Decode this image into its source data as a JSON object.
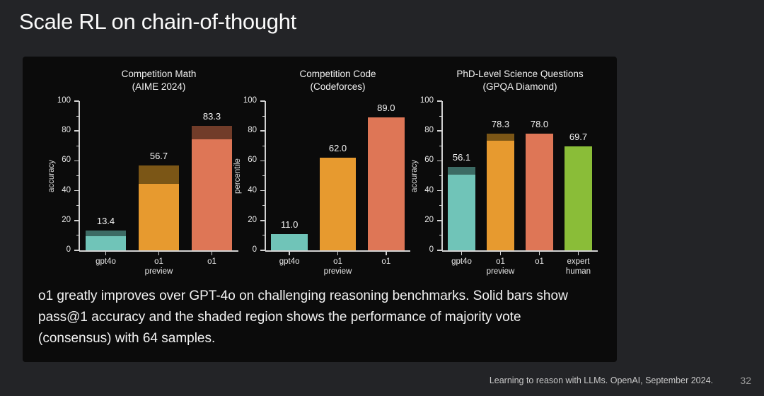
{
  "slide": {
    "title": "Scale RL on chain-of-thought",
    "caption": "o1 greatly improves over GPT-4o on challenging reasoning benchmarks. Solid bars show pass@1 accuracy and the shaded region shows the performance of majority vote (consensus) with 64 samples.",
    "footer": "Learning to reason with LLMs. OpenAI, September 2024.",
    "page_number": "32"
  },
  "colors": {
    "background": "#232427",
    "panel": "#0b0b0b",
    "axis": "#d2d2d2",
    "teal": "#70c4b8",
    "orange": "#e79a2f",
    "coral": "#de7656",
    "green": "#8abd38"
  },
  "chart_data": [
    {
      "type": "bar",
      "title": "Competition Math\n(AIME 2024)",
      "ylabel": "accuracy",
      "xlabel": "",
      "ylim": [
        0,
        100
      ],
      "yticks": [
        0,
        20,
        40,
        60,
        80,
        100
      ],
      "grid": false,
      "legend": "none",
      "categories": [
        "gpt4o",
        "o1\npreview",
        "o1"
      ],
      "series": [
        {
          "name": "pass@1 accuracy (solid)",
          "values": [
            9.3,
            44.6,
            74.4
          ]
        },
        {
          "name": "majority vote cons@64 (shaded total)",
          "values": [
            13.4,
            56.7,
            83.3
          ]
        }
      ],
      "value_labels": [
        "13.4",
        "56.7",
        "83.3"
      ],
      "bar_colors": [
        "#70c4b8",
        "#e79a2f",
        "#de7656"
      ],
      "shade_colors": [
        "#3c6b64",
        "#7b5616",
        "#713c29"
      ]
    },
    {
      "type": "bar",
      "title": "Competition Code\n(Codeforces)",
      "ylabel": "percentile",
      "xlabel": "",
      "ylim": [
        0,
        100
      ],
      "yticks": [
        0,
        20,
        40,
        60,
        80,
        100
      ],
      "grid": false,
      "legend": "none",
      "categories": [
        "gpt4o",
        "o1\npreview",
        "o1"
      ],
      "series": [
        {
          "name": "pass@1 accuracy (solid)",
          "values": [
            11.0,
            62.0,
            89.0
          ]
        },
        {
          "name": "majority vote cons@64 (shaded total)",
          "values": [
            11.0,
            62.0,
            89.0
          ]
        }
      ],
      "value_labels": [
        "11.0",
        "62.0",
        "89.0"
      ],
      "bar_colors": [
        "#70c4b8",
        "#e79a2f",
        "#de7656"
      ],
      "shade_colors": [
        "#3c6b64",
        "#7b5616",
        "#713c29"
      ]
    },
    {
      "type": "bar",
      "title": "PhD-Level Science Questions\n(GPQA Diamond)",
      "ylabel": "accuracy",
      "xlabel": "",
      "ylim": [
        0,
        100
      ],
      "yticks": [
        0,
        20,
        40,
        60,
        80,
        100
      ],
      "grid": false,
      "legend": "none",
      "categories": [
        "gpt4o",
        "o1\npreview",
        "o1",
        "expert\nhuman"
      ],
      "series": [
        {
          "name": "pass@1 accuracy (solid)",
          "values": [
            50.6,
            73.3,
            78.0,
            69.7
          ]
        },
        {
          "name": "majority vote cons@64 (shaded total)",
          "values": [
            56.1,
            78.3,
            78.0,
            69.7
          ]
        }
      ],
      "value_labels": [
        "56.1",
        "78.3",
        "78.0",
        "69.7"
      ],
      "bar_colors": [
        "#70c4b8",
        "#e79a2f",
        "#de7656",
        "#8abd38"
      ],
      "shade_colors": [
        "#3c6b64",
        "#7b5616",
        "#713c29",
        "#4e6a22"
      ]
    }
  ]
}
